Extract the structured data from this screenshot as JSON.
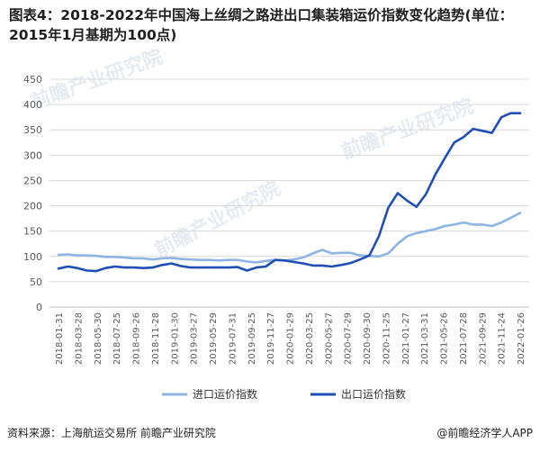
{
  "title": "图表4：2018-2022年中国海上丝绸之路进出口集装箱运价指数变化趋势(单位：2015年1月基期为100点)",
  "source": "资料来源：上海航运交易所 前瞻产业研究院",
  "brand": "@前瞻经济学人APP",
  "watermark": "前瞻产业研究院",
  "colors": {
    "import": "#8db4e2",
    "export": "#1f4fb4",
    "grid": "#d9d9d9",
    "axis": "#bfbfbf",
    "text": "#595959"
  },
  "chart_data": {
    "type": "line",
    "title": "图表4：2018-2022年中国海上丝绸之路进出口集装箱运价指数变化趋势(单位：2015年1月基期为100点)",
    "ylim": [
      0,
      450
    ],
    "yticks": [
      0,
      50,
      100,
      150,
      200,
      250,
      300,
      350,
      400,
      450
    ],
    "grid": true,
    "legend": "bottom",
    "x_labels": [
      "2018-01-31",
      "2018-03-28",
      "2018-05-30",
      "2018-07-25",
      "2018-09-26",
      "2018-11-28",
      "2019-01-30",
      "2019-03-27",
      "2019-05-29",
      "2019-07-31",
      "2019-09-25",
      "2019-11-27",
      "2020-01-29",
      "2020-03-25",
      "2020-05-27",
      "2020-07-29",
      "2020-09-30",
      "2020-11-25",
      "2021-01-27",
      "2021-03-31",
      "2021-05-26",
      "2021-07-28",
      "2021-09-29",
      "2021-11-24",
      "2022-01-26"
    ],
    "series": [
      {
        "name": "进口运价指数",
        "values": [
          103,
          104,
          102,
          102,
          101,
          99,
          99,
          98,
          96,
          96,
          94,
          96,
          97,
          95,
          94,
          93,
          93,
          92,
          93,
          93,
          90,
          88,
          91,
          93,
          92,
          94,
          98,
          106,
          113,
          106,
          107,
          107,
          102,
          101,
          100,
          106,
          125,
          140,
          146,
          150,
          154,
          160,
          163,
          167,
          163,
          163,
          160,
          167,
          176,
          186
        ]
      },
      {
        "name": "出口运价指数",
        "values": [
          76,
          80,
          77,
          72,
          71,
          77,
          80,
          78,
          78,
          77,
          78,
          83,
          86,
          81,
          78,
          78,
          78,
          78,
          78,
          79,
          72,
          78,
          80,
          93,
          92,
          89,
          86,
          82,
          82,
          80,
          83,
          87,
          94,
          102,
          140,
          196,
          225,
          210,
          198,
          223,
          262,
          294,
          325,
          336,
          352,
          348,
          344,
          375,
          383,
          383
        ]
      }
    ]
  }
}
